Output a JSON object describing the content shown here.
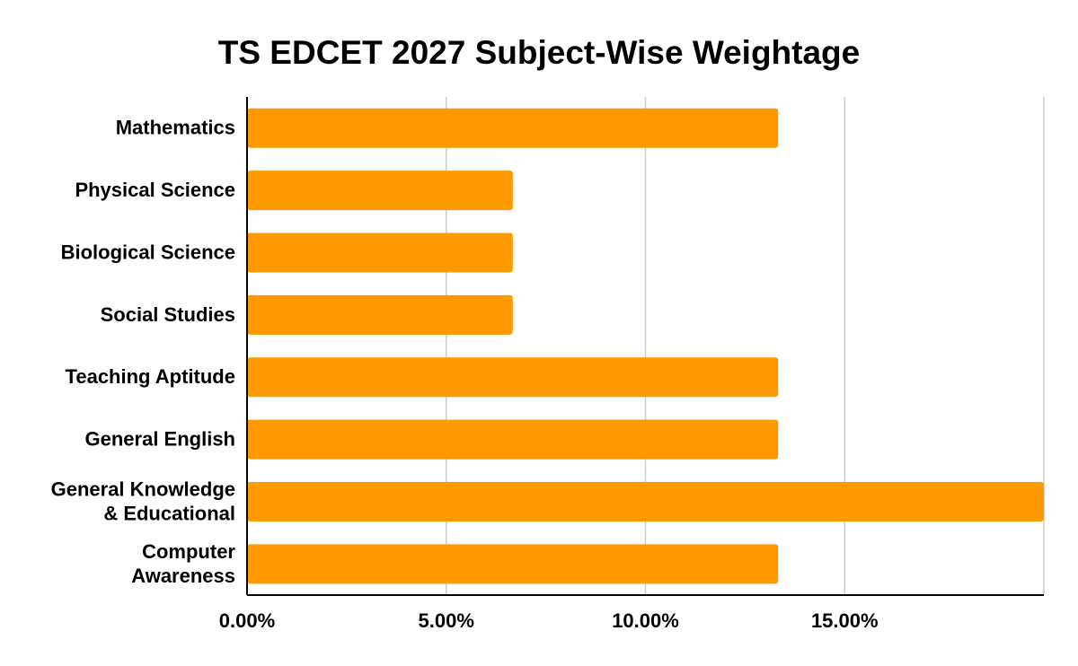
{
  "chart_data": {
    "type": "bar",
    "orientation": "horizontal",
    "title": "TS EDCET 2027 Subject-Wise Weightage",
    "xlabel": "",
    "ylabel": "",
    "categories": [
      [
        "Mathematics"
      ],
      [
        "Physical Science"
      ],
      [
        "Biological Science"
      ],
      [
        "Social Studies"
      ],
      [
        "Teaching Aptitude"
      ],
      [
        "General English"
      ],
      [
        "General Knowledge",
        "& Educational"
      ],
      [
        "Computer",
        "Awareness"
      ]
    ],
    "values": [
      13.33,
      6.67,
      6.67,
      6.67,
      13.33,
      13.33,
      20.0,
      13.33
    ],
    "xlim": [
      0,
      20
    ],
    "x_ticks": [
      0,
      5,
      10,
      15
    ],
    "x_tick_labels": [
      "0.00%",
      "5.00%",
      "10.00%",
      "15.00%"
    ],
    "grid": "vertical",
    "legend": "none",
    "colors": {
      "bar": "#FF9900",
      "grid": "#CCCCCC",
      "axis": "#000000"
    }
  }
}
